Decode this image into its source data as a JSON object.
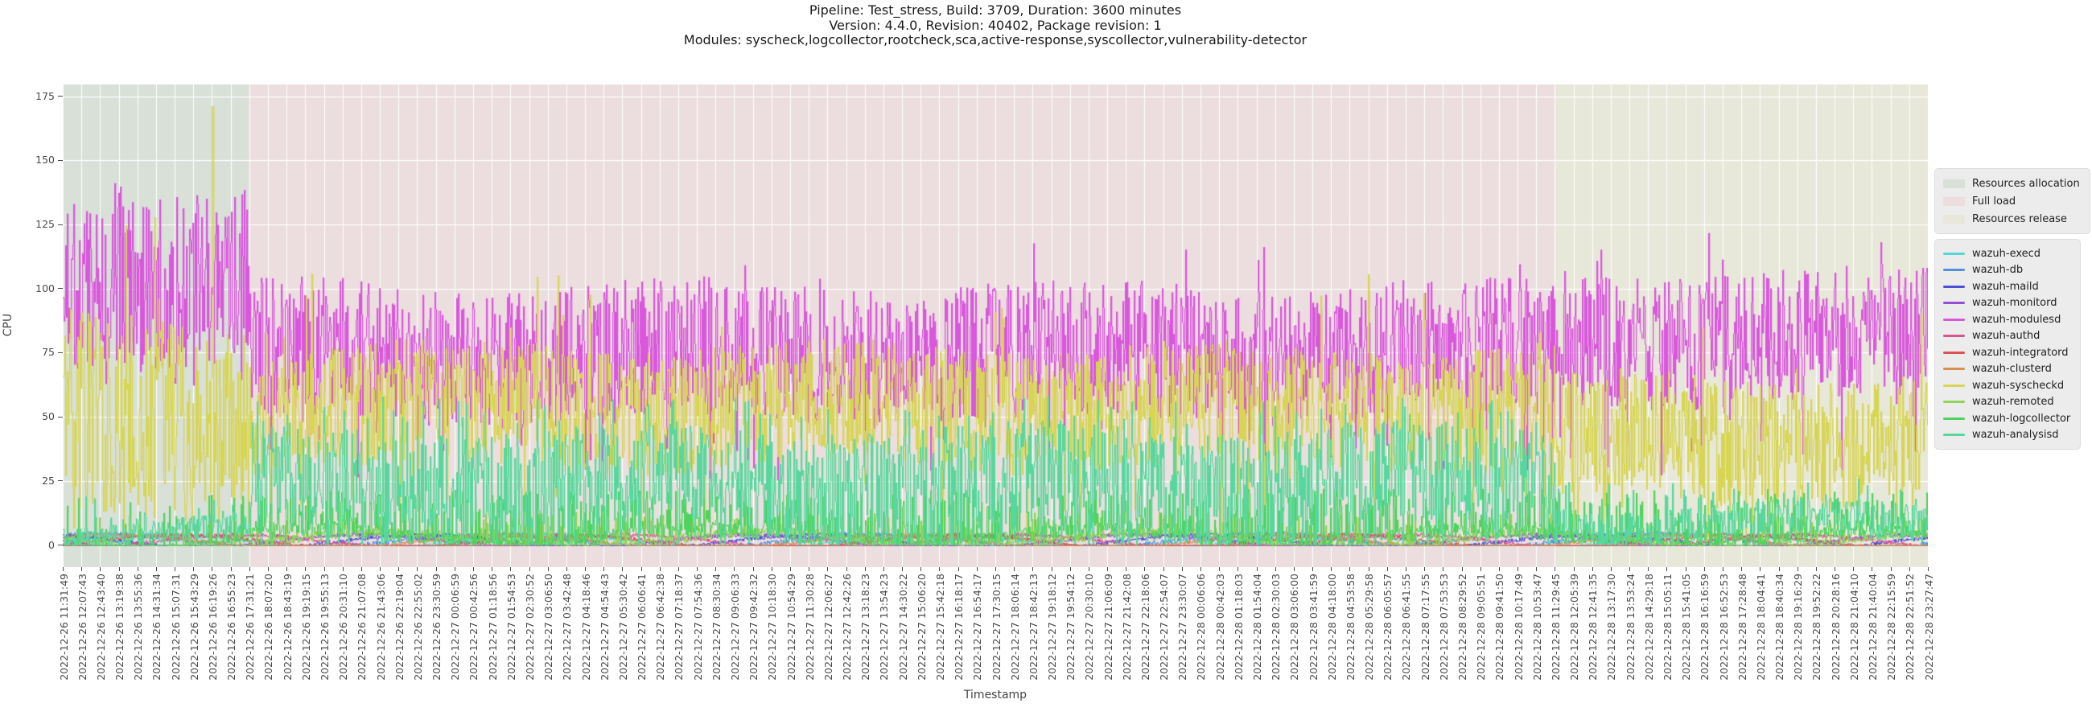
{
  "header": {
    "title_lines": [
      "Pipeline: Test_stress, Build: 3709, Duration: 3600 minutes",
      "Version: 4.4.0, Revision: 40402, Package revision: 1",
      "Modules: syscheck,logcollector,rootcheck,sca,active-response,syscollector,vulnerability-detector"
    ]
  },
  "chart_data": {
    "type": "line",
    "title": "Pipeline: Test_stress, Build: 3709, Duration: 3600 minutes",
    "xlabel": "Timestamp",
    "ylabel": "CPU",
    "yticks": [
      0,
      25,
      50,
      75,
      100,
      125,
      150,
      175
    ],
    "ylim": [
      -8.55,
      179.55
    ],
    "grid": true,
    "legend_position": "right-outside",
    "peak": {
      "series": "wazuh-syscheckd",
      "value": 171,
      "near_tick": "2022-12-26 16:19:26"
    },
    "x_tick_labels": [
      "2022-12-26 11:31:49",
      "2022-12-26 12:07:43",
      "2022-12-26 12:43:40",
      "2022-12-26 13:19:38",
      "2022-12-26 13:55:36",
      "2022-12-26 14:31:34",
      "2022-12-26 15:07:31",
      "2022-12-26 15:43:29",
      "2022-12-26 16:19:26",
      "2022-12-26 16:55:23",
      "2022-12-26 17:31:21",
      "2022-12-26 18:07:20",
      "2022-12-26 18:43:19",
      "2022-12-26 19:19:15",
      "2022-12-26 19:55:13",
      "2022-12-26 20:31:10",
      "2022-12-26 21:07:08",
      "2022-12-26 21:43:06",
      "2022-12-26 22:19:04",
      "2022-12-26 22:55:02",
      "2022-12-26 23:30:59",
      "2022-12-27 00:06:59",
      "2022-12-27 00:42:56",
      "2022-12-27 01:18:56",
      "2022-12-27 01:54:53",
      "2022-12-27 02:30:52",
      "2022-12-27 03:06:50",
      "2022-12-27 03:42:48",
      "2022-12-27 04:18:46",
      "2022-12-27 04:54:43",
      "2022-12-27 05:30:42",
      "2022-12-27 06:06:41",
      "2022-12-27 06:42:38",
      "2022-12-27 07:18:37",
      "2022-12-27 07:54:36",
      "2022-12-27 08:30:34",
      "2022-12-27 09:06:33",
      "2022-12-27 09:42:32",
      "2022-12-27 10:18:30",
      "2022-12-27 10:54:29",
      "2022-12-27 11:30:28",
      "2022-12-27 12:06:27",
      "2022-12-27 12:42:26",
      "2022-12-27 13:18:23",
      "2022-12-27 13:54:23",
      "2022-12-27 14:30:22",
      "2022-12-27 15:06:20",
      "2022-12-27 15:42:18",
      "2022-12-27 16:18:17",
      "2022-12-27 16:54:17",
      "2022-12-27 17:30:15",
      "2022-12-27 18:06:14",
      "2022-12-27 18:42:13",
      "2022-12-27 19:18:12",
      "2022-12-27 19:54:12",
      "2022-12-27 20:30:10",
      "2022-12-27 21:06:09",
      "2022-12-27 21:42:08",
      "2022-12-27 22:18:06",
      "2022-12-27 22:54:07",
      "2022-12-27 23:30:07",
      "2022-12-28 00:06:06",
      "2022-12-28 00:42:03",
      "2022-12-28 01:18:03",
      "2022-12-28 01:54:04",
      "2022-12-28 02:30:03",
      "2022-12-28 03:06:00",
      "2022-12-28 03:41:59",
      "2022-12-28 04:18:00",
      "2022-12-28 04:53:58",
      "2022-12-28 05:29:58",
      "2022-12-28 06:05:57",
      "2022-12-28 06:41:55",
      "2022-12-28 07:17:55",
      "2022-12-28 07:53:53",
      "2022-12-28 08:29:52",
      "2022-12-28 09:05:51",
      "2022-12-28 09:41:50",
      "2022-12-28 10:17:49",
      "2022-12-28 10:53:47",
      "2022-12-28 11:29:45",
      "2022-12-28 12:05:39",
      "2022-12-28 12:41:35",
      "2022-12-28 13:17:30",
      "2022-12-28 13:53:24",
      "2022-12-28 14:29:18",
      "2022-12-28 15:05:11",
      "2022-12-28 15:41:05",
      "2022-12-28 16:16:59",
      "2022-12-28 16:52:53",
      "2022-12-28 17:28:48",
      "2022-12-28 18:04:41",
      "2022-12-28 18:40:34",
      "2022-12-28 19:16:29",
      "2022-12-28 19:52:22",
      "2022-12-28 20:28:16",
      "2022-12-28 21:04:10",
      "2022-12-28 21:40:04",
      "2022-12-28 22:15:59",
      "2022-12-28 22:51:52",
      "2022-12-28 23:27:47"
    ],
    "zones": [
      {
        "label": "Resources allocation",
        "color": "#d8e0d8",
        "from_tick": 0,
        "to_tick": 10,
        "from_time": "2022-12-26 11:31:49",
        "to_time": "2022-12-26 17:31:21"
      },
      {
        "label": "Full load",
        "color": "#ecdede",
        "from_tick": 10,
        "to_tick": 80,
        "from_time": "2022-12-26 17:31:21",
        "to_time": "2022-12-28 11:29:45"
      },
      {
        "label": "Resources release",
        "color": "#e8e8da",
        "from_tick": 80,
        "to_tick": 100,
        "from_time": "2022-12-28 11:29:45",
        "to_time": "2022-12-28 23:27:47"
      }
    ],
    "series": [
      {
        "name": "wazuh-execd",
        "color": "#56d7d7",
        "phases": [
          {
            "lo": 0.3,
            "hi": 2.2,
            "spike_p": 0,
            "spike_hi": 0,
            "dip_p": 0,
            "dip_lo": 0
          },
          {
            "lo": 0.3,
            "hi": 2.2,
            "spike_p": 0,
            "spike_hi": 0,
            "dip_p": 0,
            "dip_lo": 0
          },
          {
            "lo": 0.3,
            "hi": 2.2,
            "spike_p": 0,
            "spike_hi": 0,
            "dip_p": 0,
            "dip_lo": 0
          }
        ]
      },
      {
        "name": "wazuh-db",
        "color": "#5191da",
        "phases": [
          {
            "lo": 0.3,
            "hi": 2.5,
            "spike_p": 0,
            "spike_hi": 0,
            "dip_p": 0,
            "dip_lo": 0
          },
          {
            "lo": 0.3,
            "hi": 2.5,
            "spike_p": 0,
            "spike_hi": 0,
            "dip_p": 0,
            "dip_lo": 0
          },
          {
            "lo": 0.3,
            "hi": 2.5,
            "spike_p": 0,
            "spike_hi": 0,
            "dip_p": 0,
            "dip_lo": 0
          }
        ]
      },
      {
        "name": "wazuh-maild",
        "color": "#4d50d3",
        "phases": [
          {
            "lo": 0.2,
            "hi": 1.8,
            "spike_p": 0,
            "spike_hi": 0,
            "dip_p": 0,
            "dip_lo": 0
          },
          {
            "lo": 0.2,
            "hi": 1.8,
            "spike_p": 0,
            "spike_hi": 0,
            "dip_p": 0,
            "dip_lo": 0
          },
          {
            "lo": 0.2,
            "hi": 1.8,
            "spike_p": 0,
            "spike_hi": 0,
            "dip_p": 0,
            "dip_lo": 0
          }
        ]
      },
      {
        "name": "wazuh-monitord",
        "color": "#9350d6",
        "phases": [
          {
            "lo": 0.2,
            "hi": 2.0,
            "spike_p": 0,
            "spike_hi": 0,
            "dip_p": 0,
            "dip_lo": 0
          },
          {
            "lo": 0.2,
            "hi": 2.0,
            "spike_p": 0,
            "spike_hi": 0,
            "dip_p": 0,
            "dip_lo": 0
          },
          {
            "lo": 0.2,
            "hi": 2.0,
            "spike_p": 0,
            "spike_hi": 0,
            "dip_p": 0,
            "dip_lo": 0
          }
        ]
      },
      {
        "name": "wazuh-modulesd",
        "color": "#d957dc",
        "phases": [
          {
            "lo": 70,
            "hi": 137,
            "spike_p": 0.01,
            "spike_hi": 142,
            "dip_p": 0.03,
            "dip_lo": 55
          },
          {
            "lo": 48,
            "hi": 102,
            "spike_p": 0.006,
            "spike_hi": 118,
            "dip_p": 0.03,
            "dip_lo": 25
          },
          {
            "lo": 55,
            "hi": 107,
            "spike_p": 0.008,
            "spike_hi": 122,
            "dip_p": 0.05,
            "dip_lo": 25
          }
        ]
      },
      {
        "name": "wazuh-authd",
        "color": "#d9538e",
        "phases": [
          {
            "lo": 0.2,
            "hi": 1.8,
            "spike_p": 0,
            "spike_hi": 0,
            "dip_p": 0,
            "dip_lo": 0
          },
          {
            "lo": 0.2,
            "hi": 1.8,
            "spike_p": 0,
            "spike_hi": 0,
            "dip_p": 0,
            "dip_lo": 0
          },
          {
            "lo": 0.2,
            "hi": 1.8,
            "spike_p": 0,
            "spike_hi": 0,
            "dip_p": 0,
            "dip_lo": 0
          }
        ]
      },
      {
        "name": "wazuh-integratord",
        "color": "#d95350",
        "phases": [
          {
            "lo": 0.2,
            "hi": 1.8,
            "spike_p": 0,
            "spike_hi": 0,
            "dip_p": 0,
            "dip_lo": 0
          },
          {
            "lo": 0.2,
            "hi": 1.8,
            "spike_p": 0,
            "spike_hi": 0,
            "dip_p": 0,
            "dip_lo": 0
          },
          {
            "lo": 0.2,
            "hi": 1.8,
            "spike_p": 0,
            "spike_hi": 0,
            "dip_p": 0,
            "dip_lo": 0
          }
        ]
      },
      {
        "name": "wazuh-clusterd",
        "color": "#d98e50",
        "phases": [
          {
            "lo": 0.2,
            "hi": 1.8,
            "spike_p": 0,
            "spike_hi": 0,
            "dip_p": 0,
            "dip_lo": 0
          },
          {
            "lo": 0.2,
            "hi": 1.8,
            "spike_p": 0,
            "spike_hi": 0,
            "dip_p": 0,
            "dip_lo": 0
          },
          {
            "lo": 0.2,
            "hi": 1.8,
            "spike_p": 0,
            "spike_hi": 0,
            "dip_p": 0,
            "dip_lo": 0
          }
        ]
      },
      {
        "name": "wazuh-syscheckd",
        "color": "#d7d552",
        "phases": [
          {
            "lo": 10,
            "hi": 90,
            "spike_p": 0.015,
            "spike_hi": 138,
            "dip_p": 0.02,
            "dip_lo": 2
          },
          {
            "lo": 30,
            "hi": 78,
            "spike_p": 0.008,
            "spike_hi": 107,
            "dip_p": 0.012,
            "dip_lo": 4
          },
          {
            "lo": 17,
            "hi": 66,
            "spike_p": 0.006,
            "spike_hi": 100,
            "dip_p": 0.02,
            "dip_lo": 3
          }
        ]
      },
      {
        "name": "wazuh-remoted",
        "color": "#8ed455",
        "phases": [
          {
            "lo": 0.2,
            "hi": 2.5,
            "spike_p": 0.06,
            "spike_hi": 11,
            "dip_p": 0,
            "dip_lo": 0
          },
          {
            "lo": 0.2,
            "hi": 4.0,
            "spike_p": 0.12,
            "spike_hi": 13,
            "dip_p": 0,
            "dip_lo": 0
          },
          {
            "lo": 0.2,
            "hi": 3.0,
            "spike_p": 0.1,
            "spike_hi": 12,
            "dip_p": 0,
            "dip_lo": 0
          }
        ]
      },
      {
        "name": "wazuh-logcollector",
        "color": "#50d35e",
        "phases": [
          {
            "lo": 0.2,
            "hi": 3.0,
            "spike_p": 0.12,
            "spike_hi": 20,
            "dip_p": 0,
            "dip_lo": 0
          },
          {
            "lo": 0.2,
            "hi": 6.0,
            "spike_p": 0.28,
            "spike_hi": 22,
            "dip_p": 0,
            "dip_lo": 0
          },
          {
            "lo": 0.2,
            "hi": 5.0,
            "spike_p": 0.22,
            "spike_hi": 22,
            "dip_p": 0,
            "dip_lo": 0
          }
        ]
      },
      {
        "name": "wazuh-analysisd",
        "color": "#57d79d",
        "phases": [
          {
            "lo": 0.5,
            "hi": 10,
            "spike_p": 0.08,
            "spike_hi": 20,
            "dip_p": 0,
            "dip_lo": 0
          },
          {
            "lo": 1.0,
            "hi": 46,
            "spike_p": 0.04,
            "spike_hi": 58,
            "dip_p": 0.05,
            "dip_lo": 0
          },
          {
            "lo": 0.5,
            "hi": 16,
            "spike_p": 0.08,
            "spike_hi": 26,
            "dip_p": 0,
            "dip_lo": 0
          }
        ]
      }
    ]
  }
}
